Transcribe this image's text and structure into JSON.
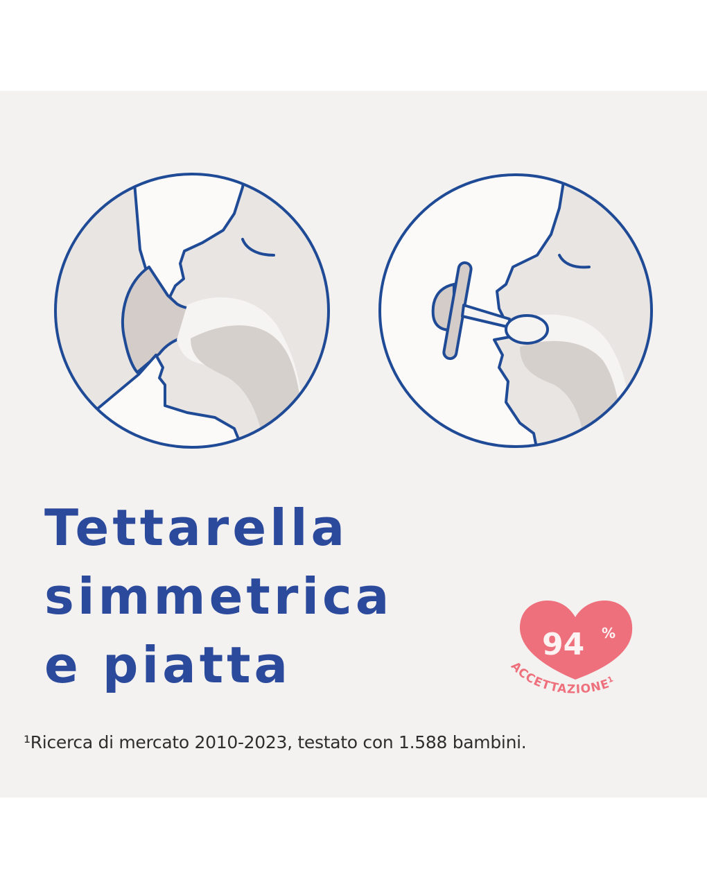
{
  "headline": {
    "line1": "Tettarella",
    "line2": "simmetrica",
    "line3": "e piatta"
  },
  "badge": {
    "value": "94",
    "unit": "%",
    "label": "ACCETTAZIONE",
    "footnote_mark": "1",
    "color": "#ee707c",
    "icon": "heart-icon"
  },
  "footnote": "¹Ricerca di mercato 2010-2023, testato con 1.588 bambini.",
  "colors": {
    "outline": "#1f4a96",
    "headline": "#2b4a9c",
    "background": "#f4f2f1"
  }
}
